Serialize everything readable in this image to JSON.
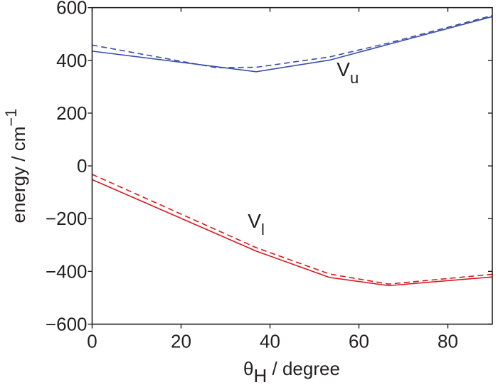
{
  "chart_data": {
    "type": "line",
    "xlabel": {
      "main": "θ",
      "sub": "H",
      "rest": " / degree"
    },
    "ylabel": {
      "main": "energy / cm",
      "sup": "−1"
    },
    "xlim": [
      0,
      90
    ],
    "ylim": [
      -600,
      600
    ],
    "xticks": [
      "0",
      "20",
      "40",
      "60",
      "80"
    ],
    "xtick_values": [
      0,
      20,
      40,
      60,
      80
    ],
    "yticks": [
      "600",
      "400",
      "200",
      "0",
      "−200",
      "−400",
      "−600"
    ],
    "ytick_values": [
      600,
      400,
      200,
      0,
      -200,
      -400,
      -600
    ],
    "grid": false,
    "series": [
      {
        "color": "#3a4fa8",
        "dash": false,
        "x": [
          0,
          36.9,
          53.4,
          66.7,
          90
        ],
        "y": [
          435,
          357,
          401,
          461,
          566
        ]
      },
      {
        "color": "#3a4fa8",
        "dash": true,
        "x": [
          0,
          28,
          37,
          53.4,
          66.7,
          90
        ],
        "y": [
          458,
          372,
          374,
          413,
          466,
          570
        ]
      },
      {
        "color": "#d7191f",
        "dash": false,
        "x": [
          0,
          36.9,
          53.4,
          66.7,
          90
        ],
        "y": [
          -52,
          -323,
          -423,
          -454,
          -421
        ]
      },
      {
        "color": "#d7191f",
        "dash": true,
        "x": [
          0,
          36.9,
          53.4,
          66.7,
          90
        ],
        "y": [
          -32,
          -310,
          -410,
          -448,
          -411
        ]
      }
    ],
    "annotations": [
      {
        "main": "V",
        "sub": "u",
        "x": 55,
        "y": 340
      },
      {
        "main": "V",
        "sub": "l",
        "x": 35,
        "y": -235
      }
    ]
  }
}
